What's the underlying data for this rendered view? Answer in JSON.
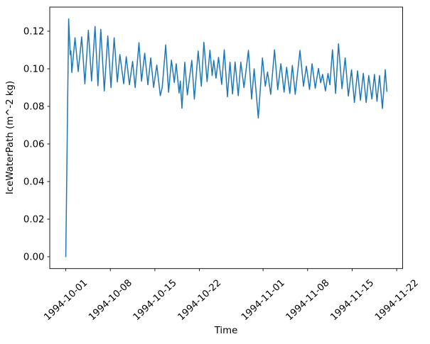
{
  "chart_data": {
    "type": "line",
    "title": "",
    "xlabel": "Time",
    "ylabel": "IceWaterPath (m^-2 kg)",
    "grid": false,
    "legend": "none",
    "line_color": "#1f77b4",
    "axis_color": "#000000",
    "background_color": "#ffffff",
    "x_unit": "days since 1994-10-01 00:00",
    "xlim": [
      -2.52,
      52.93
    ],
    "ylim": [
      -0.00632,
      0.13283
    ],
    "x_ticks": [
      {
        "label": "1994-10-01",
        "day": 0
      },
      {
        "label": "1994-10-08",
        "day": 7
      },
      {
        "label": "1994-10-15",
        "day": 14
      },
      {
        "label": "1994-10-22",
        "day": 21
      },
      {
        "label": "1994-11-01",
        "day": 31
      },
      {
        "label": "1994-11-08",
        "day": 38
      },
      {
        "label": "1994-11-15",
        "day": 45
      },
      {
        "label": "1994-11-22",
        "day": 52
      }
    ],
    "y_ticks": [
      {
        "label": "0.00",
        "value": 0.0
      },
      {
        "label": "0.02",
        "value": 0.02
      },
      {
        "label": "0.04",
        "value": 0.04
      },
      {
        "label": "0.06",
        "value": 0.06
      },
      {
        "label": "0.08",
        "value": 0.08
      },
      {
        "label": "0.10",
        "value": 0.1
      },
      {
        "label": "0.12",
        "value": 0.12
      }
    ],
    "series": [
      {
        "name": "IceWaterPath",
        "points": [
          [
            0.0,
            0.0
          ],
          [
            0.45,
            0.1265
          ],
          [
            0.7,
            0.1075
          ],
          [
            0.8,
            0.1095
          ],
          [
            0.95,
            0.098
          ],
          [
            1.45,
            0.1165
          ],
          [
            1.95,
            0.0985
          ],
          [
            2.5,
            0.117
          ],
          [
            3.0,
            0.092
          ],
          [
            3.55,
            0.1205
          ],
          [
            4.05,
            0.0935
          ],
          [
            4.6,
            0.1225
          ],
          [
            5.05,
            0.091
          ],
          [
            5.5,
            0.121
          ],
          [
            6.05,
            0.0882
          ],
          [
            6.6,
            0.1175
          ],
          [
            7.1,
            0.09
          ],
          [
            7.6,
            0.1165
          ],
          [
            8.1,
            0.093
          ],
          [
            8.5,
            0.1076
          ],
          [
            9.1,
            0.092
          ],
          [
            9.5,
            0.1064
          ],
          [
            10.0,
            0.0915
          ],
          [
            10.5,
            0.1039
          ],
          [
            10.9,
            0.09
          ],
          [
            11.5,
            0.1139
          ],
          [
            11.9,
            0.0934
          ],
          [
            12.4,
            0.1083
          ],
          [
            12.9,
            0.0915
          ],
          [
            13.35,
            0.1058
          ],
          [
            13.8,
            0.0901
          ],
          [
            14.3,
            0.102
          ],
          [
            14.85,
            0.0857
          ],
          [
            15.15,
            0.09
          ],
          [
            15.7,
            0.1127
          ],
          [
            16.15,
            0.0875
          ],
          [
            16.6,
            0.1046
          ],
          [
            17.05,
            0.0927
          ],
          [
            17.35,
            0.1027
          ],
          [
            17.8,
            0.0871
          ],
          [
            18.0,
            0.0935
          ],
          [
            18.25,
            0.079
          ],
          [
            18.7,
            0.1035
          ],
          [
            19.1,
            0.0861
          ],
          [
            19.8,
            0.1045
          ],
          [
            20.2,
            0.0839
          ],
          [
            20.8,
            0.1095
          ],
          [
            21.3,
            0.0907
          ],
          [
            21.7,
            0.1141
          ],
          [
            22.2,
            0.0932
          ],
          [
            22.65,
            0.1099
          ],
          [
            23.0,
            0.0964
          ],
          [
            23.25,
            0.1045
          ],
          [
            23.6,
            0.095
          ],
          [
            24.0,
            0.1061
          ],
          [
            24.5,
            0.0917
          ],
          [
            24.9,
            0.1101
          ],
          [
            25.4,
            0.0851
          ],
          [
            25.8,
            0.1035
          ],
          [
            26.2,
            0.0866
          ],
          [
            26.6,
            0.1036
          ],
          [
            27.1,
            0.0857
          ],
          [
            27.5,
            0.1035
          ],
          [
            28.0,
            0.09
          ],
          [
            28.7,
            0.1098
          ],
          [
            29.2,
            0.0839
          ],
          [
            29.6,
            0.1
          ],
          [
            30.25,
            0.0738
          ],
          [
            30.9,
            0.1058
          ],
          [
            31.35,
            0.0907
          ],
          [
            31.7,
            0.0983
          ],
          [
            32.2,
            0.0864
          ],
          [
            32.8,
            0.1101
          ],
          [
            33.3,
            0.0889
          ],
          [
            33.8,
            0.1027
          ],
          [
            34.3,
            0.0876
          ],
          [
            34.7,
            0.1008
          ],
          [
            35.2,
            0.0869
          ],
          [
            35.6,
            0.1018
          ],
          [
            36.05,
            0.0864
          ],
          [
            36.8,
            0.1098
          ],
          [
            37.35,
            0.0907
          ],
          [
            37.8,
            0.1014
          ],
          [
            38.3,
            0.089
          ],
          [
            38.7,
            0.1027
          ],
          [
            39.2,
            0.0896
          ],
          [
            39.7,
            0.1002
          ],
          [
            40.05,
            0.0926
          ],
          [
            40.35,
            0.097
          ],
          [
            40.8,
            0.0882
          ],
          [
            41.2,
            0.0975
          ],
          [
            41.5,
            0.0915
          ],
          [
            41.9,
            0.1101
          ],
          [
            42.4,
            0.0869
          ],
          [
            42.85,
            0.1133
          ],
          [
            43.4,
            0.0894
          ],
          [
            43.9,
            0.1058
          ],
          [
            44.4,
            0.0855
          ],
          [
            44.9,
            0.0995
          ],
          [
            45.35,
            0.0821
          ],
          [
            45.85,
            0.0989
          ],
          [
            46.3,
            0.0833
          ],
          [
            46.75,
            0.0976
          ],
          [
            47.2,
            0.0821
          ],
          [
            47.6,
            0.0964
          ],
          [
            48.1,
            0.0839
          ],
          [
            48.5,
            0.097
          ],
          [
            48.9,
            0.0827
          ],
          [
            49.3,
            0.0964
          ],
          [
            49.75,
            0.0789
          ],
          [
            50.2,
            0.0995
          ],
          [
            50.45,
            0.088
          ]
        ]
      }
    ]
  }
}
